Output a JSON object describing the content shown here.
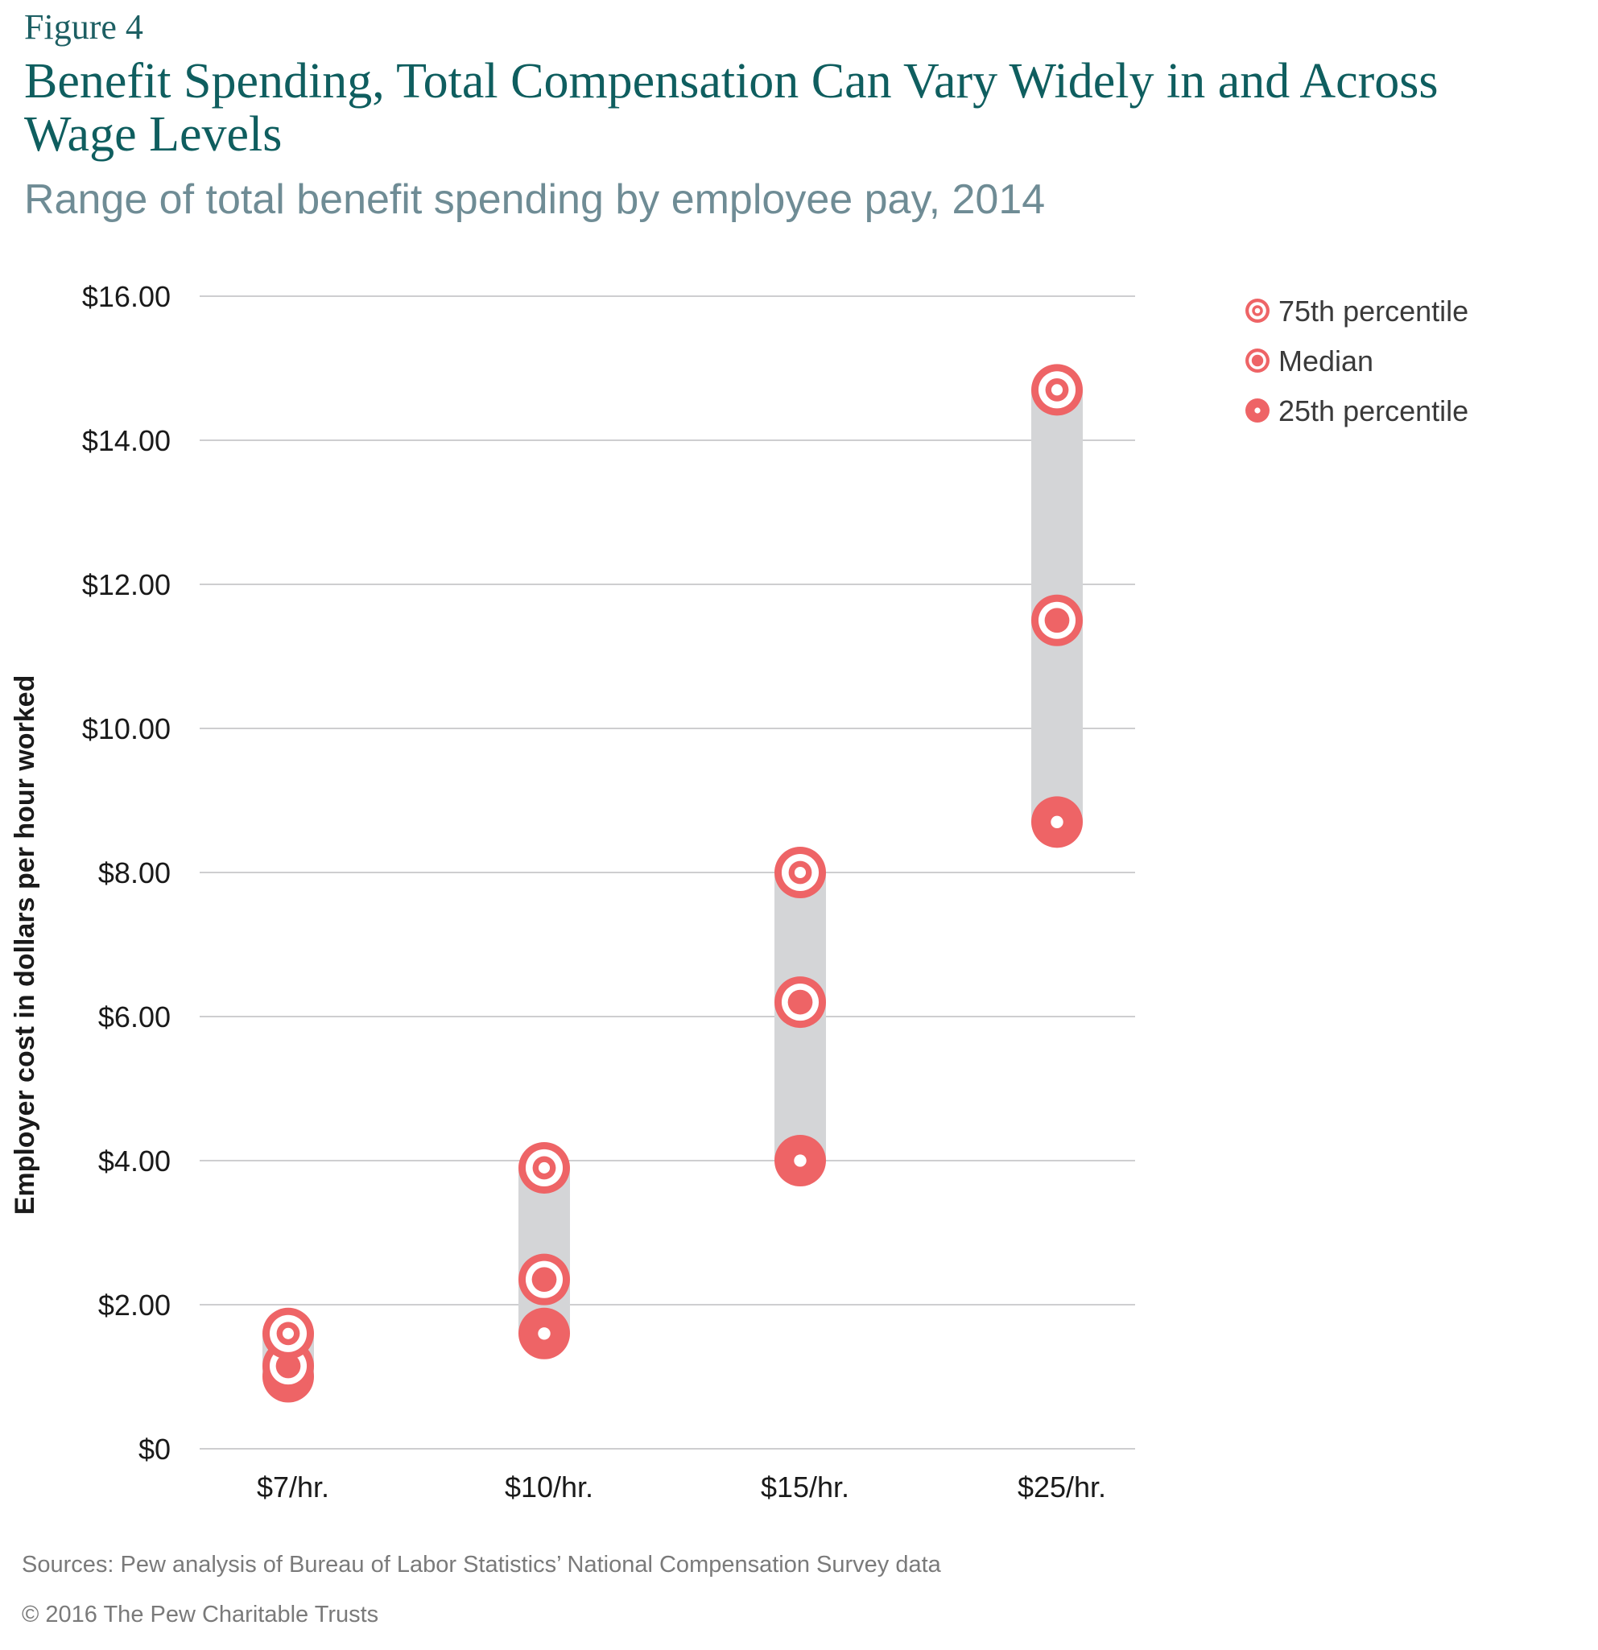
{
  "figure_label": "Figure 4",
  "title": "Benefit Spending, Total Compensation Can Vary Widely in and Across Wage Levels",
  "subtitle": "Range of total benefit spending by employee pay, 2014",
  "sources": "Sources: Pew analysis of Bureau of Labor Statistics’ National Compensation Survey data",
  "copyright": "© 2016 The Pew Charitable Trusts",
  "colors": {
    "marker": "#ee6466",
    "range_bar": "#d4d5d7",
    "gridline": "#bdbec0",
    "axis_text": "#1a1a1a"
  },
  "chart_data": {
    "type": "scatter",
    "title": "",
    "xlabel": "",
    "ylabel": "Employer cost in dollars per hour worked",
    "categories": [
      "$7/hr.",
      "$10/hr.",
      "$15/hr.",
      "$25/hr."
    ],
    "ylim": [
      0,
      16
    ],
    "yticks": [
      0,
      2,
      4,
      6,
      8,
      10,
      12,
      14,
      16
    ],
    "ytick_labels": [
      "$0",
      "$2.00",
      "$4.00",
      "$6.00",
      "$8.00",
      "$10.00",
      "$12.00",
      "$14.00",
      "$16.00"
    ],
    "grid": true,
    "legend_position": "top-right",
    "series": [
      {
        "name": "75th percentile",
        "marker": "ring-small-center",
        "values": [
          1.6,
          3.9,
          8.0,
          14.7
        ]
      },
      {
        "name": "Median",
        "marker": "ring-large-center",
        "values": [
          1.15,
          2.35,
          6.2,
          11.5
        ]
      },
      {
        "name": "25th percentile",
        "marker": "solid-dot-center",
        "values": [
          1.0,
          1.6,
          4.0,
          8.7
        ]
      }
    ]
  }
}
